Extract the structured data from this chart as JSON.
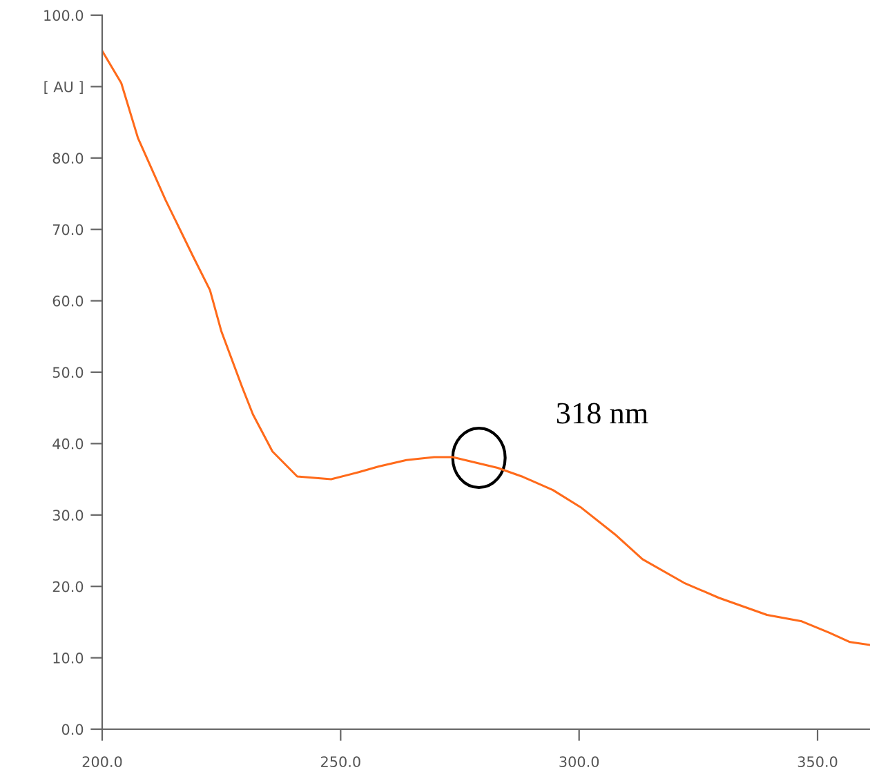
{
  "chart_data": {
    "type": "line",
    "x": [
      200,
      204,
      207.5,
      213.3,
      219,
      222.6,
      225,
      229.3,
      231.6,
      235.7,
      240.9,
      248,
      253.8,
      258,
      263.8,
      269.6,
      273.5,
      278.5,
      282.9,
      288,
      294.5,
      300.3,
      307.5,
      313.3,
      322,
      329.3,
      339.4,
      346.7,
      352.5,
      356.8,
      361
    ],
    "series": [
      {
        "color": "#ff6a1a",
        "values": [
          95,
          90.5,
          82.8,
          74.1,
          66.3,
          61.5,
          55.7,
          48,
          44.1,
          38.9,
          35.4,
          35,
          36,
          36.8,
          37.7,
          38.1,
          38.1,
          37.3,
          36.6,
          35.4,
          33.5,
          31.1,
          27.3,
          23.8,
          20.5,
          18.4,
          16,
          15.1,
          13.5,
          12.2,
          11.8
        ]
      }
    ],
    "xlim": [
      200,
      361
    ],
    "xticks": [
      {
        "value": 200,
        "label": "200.0"
      },
      {
        "value": 250,
        "label": "250.0"
      },
      {
        "value": 300,
        "label": "300.0"
      },
      {
        "value": 350,
        "label": "350.0"
      }
    ],
    "ylim": [
      0,
      100
    ],
    "yticks": [
      {
        "value": 0,
        "label": "0.0"
      },
      {
        "value": 10,
        "label": "10.0"
      },
      {
        "value": 20,
        "label": "20.0"
      },
      {
        "value": 30,
        "label": "30.0"
      },
      {
        "value": 40,
        "label": "40.0"
      },
      {
        "value": 50,
        "label": "50.0"
      },
      {
        "value": 60,
        "label": "60.0"
      },
      {
        "value": 70,
        "label": "70.0"
      },
      {
        "value": 80,
        "label": "80.0"
      },
      {
        "value": 90,
        "label": "[ AU ]"
      },
      {
        "value": 100,
        "label": "100.0"
      }
    ],
    "annotations": [
      {
        "text": "318 nm",
        "x": 279,
        "y": 38
      }
    ],
    "grid": false,
    "legend": false,
    "marker": "none",
    "line_style": "solid"
  }
}
